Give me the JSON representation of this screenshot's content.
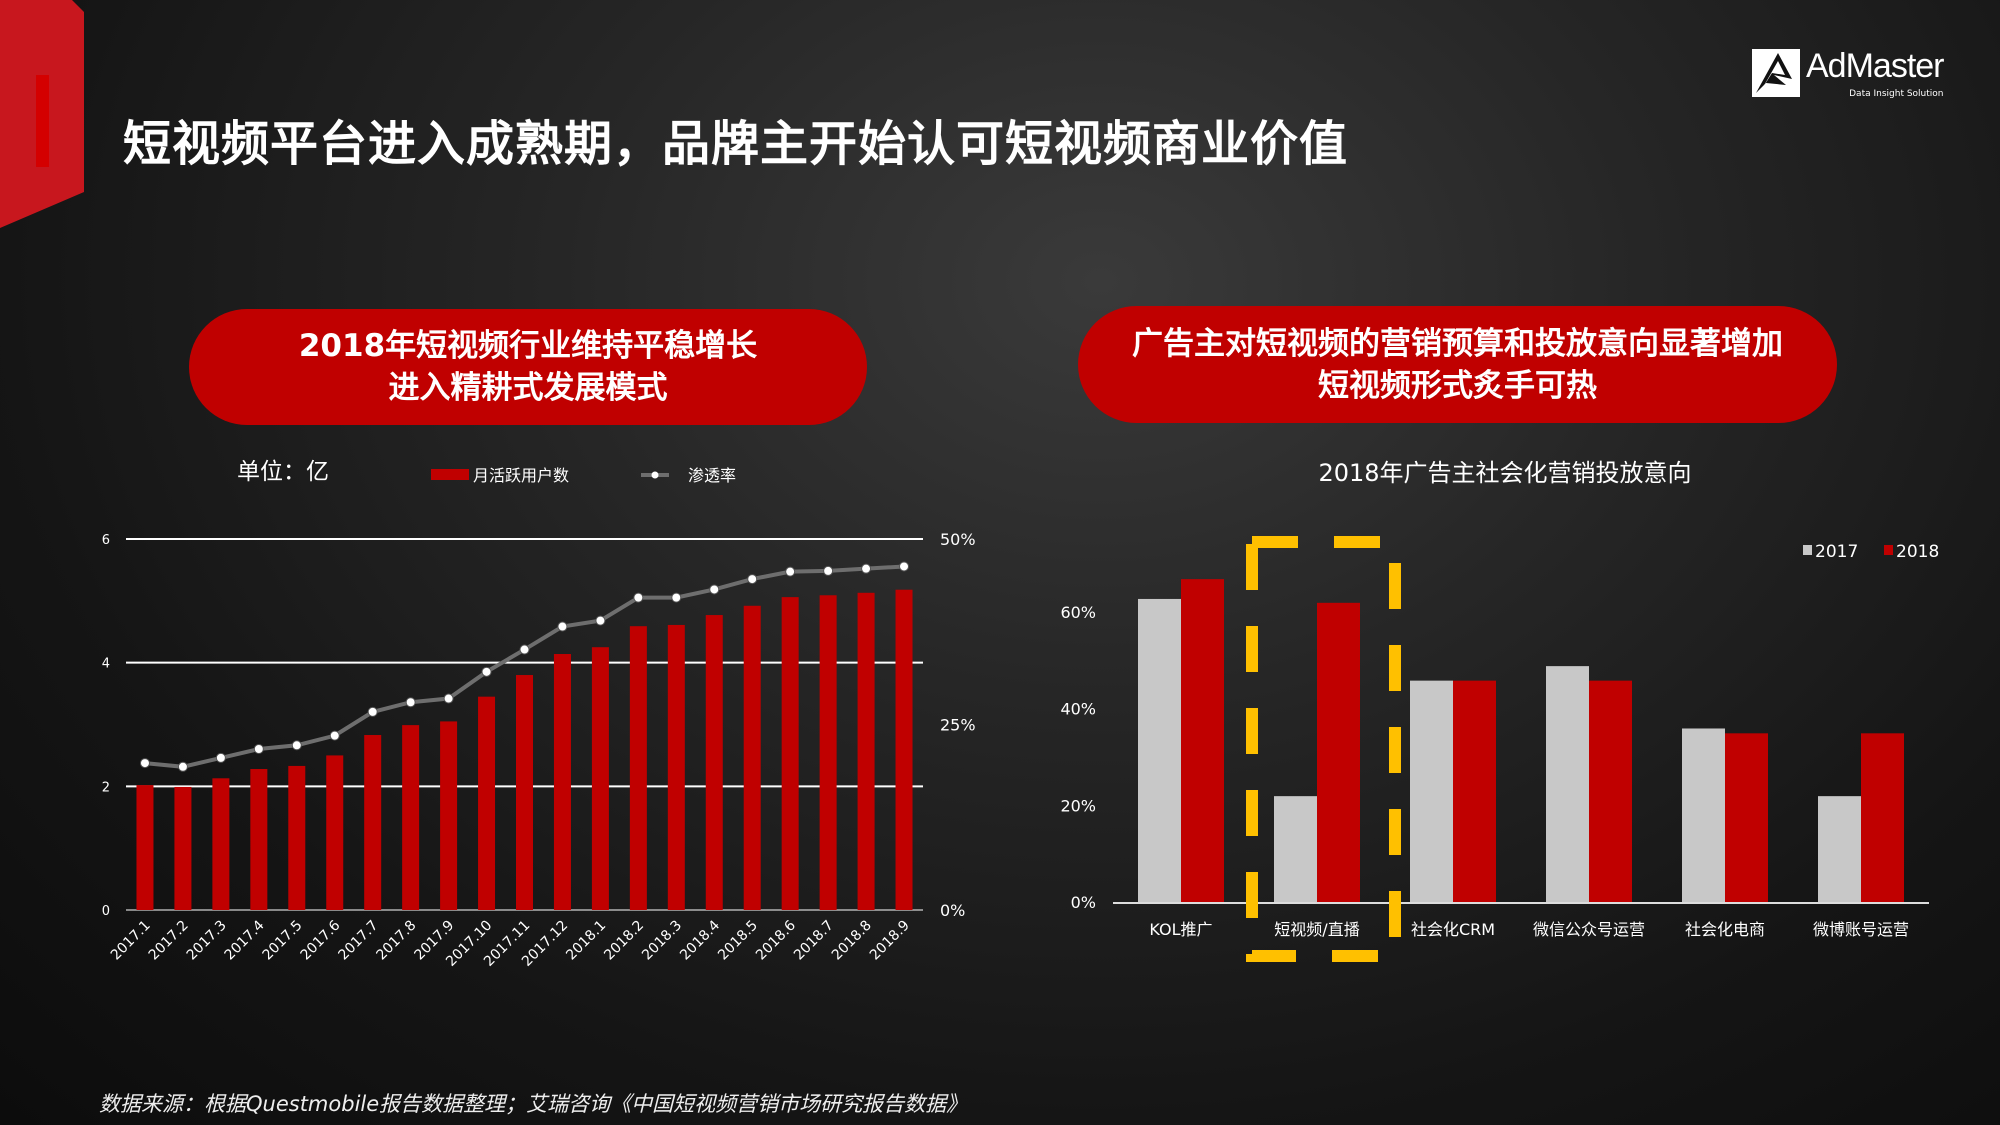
{
  "header": {
    "title": "短视频平台进入成熟期，品牌主开始认可短视频商业价值"
  },
  "logo": {
    "name": "AdMaster",
    "tagline": "Data Insight Solution",
    "registered": "®"
  },
  "left_panel": {
    "pill_line1": "2018年短视频行业维持平稳增长",
    "pill_line2": "进入精耕式发展模式",
    "unit": "单位：亿"
  },
  "right_panel": {
    "pill_line1": "广告主对短视频的营销预算和投放意向显著增加",
    "pill_line2": "短视频形式炙手可热"
  },
  "footer": {
    "source": "数据来源：根据Questmobile报告数据整理；艾瑞咨询《中国短视频营销市场研究报告数据》"
  },
  "colors": {
    "red": "#c00000",
    "gray": "#c8c8c8",
    "line": "#6e6e6e",
    "highlight": "#ffc000"
  },
  "chart_data": [
    {
      "type": "bar+line",
      "title": "",
      "categories": [
        "2017.1",
        "2017.2",
        "2017.3",
        "2017.4",
        "2017.5",
        "2017.6",
        "2017.7",
        "2017.8",
        "2017.9",
        "2017.10",
        "2017.11",
        "2017.12",
        "2018.1",
        "2018.2",
        "2018.3",
        "2018.4",
        "2018.5",
        "2018.6",
        "2018.7",
        "2018.8",
        "2018.9"
      ],
      "series": [
        {
          "name": "月活跃用户数",
          "type": "bar",
          "axis": "left",
          "values": [
            2.02,
            1.99,
            2.13,
            2.28,
            2.33,
            2.5,
            2.83,
            2.99,
            3.05,
            3.45,
            3.8,
            4.14,
            4.25,
            4.59,
            4.61,
            4.77,
            4.92,
            5.06,
            5.09,
            5.13,
            5.18
          ]
        },
        {
          "name": "渗透率",
          "type": "line",
          "axis": "right",
          "values": [
            19.8,
            19.3,
            20.5,
            21.7,
            22.2,
            23.5,
            26.7,
            28.0,
            28.5,
            32.1,
            35.1,
            38.2,
            39.0,
            42.1,
            42.1,
            43.2,
            44.6,
            45.6,
            45.7,
            46.0,
            46.3
          ]
        }
      ],
      "left_axis": {
        "range": [
          0,
          6
        ],
        "ticks": [
          "0",
          "2",
          "4",
          "6"
        ]
      },
      "right_axis": {
        "range": [
          0,
          50
        ],
        "ticks": [
          "0%",
          "25%",
          "50%"
        ]
      },
      "grid": true,
      "legend": "top"
    },
    {
      "type": "bar",
      "title": "2018年广告主社会化营销投放意向",
      "categories": [
        "KOL推广",
        "短视频/直播",
        "社会化CRM",
        "微信公众号运营",
        "社会化电商",
        "微博账号运营"
      ],
      "series": [
        {
          "name": "2017",
          "values": [
            62.7,
            21.9,
            45.8,
            48.8,
            35.9,
            21.9
          ]
        },
        {
          "name": "2018",
          "values": [
            66.8,
            61.9,
            45.8,
            45.8,
            34.9,
            34.9
          ]
        }
      ],
      "y_axis": {
        "range": [
          0,
          70
        ],
        "ticks": [
          "0%",
          "20%",
          "40%",
          "60%"
        ]
      },
      "grid": false,
      "legend": "top-right",
      "highlight_category": "短视频/直播"
    }
  ]
}
